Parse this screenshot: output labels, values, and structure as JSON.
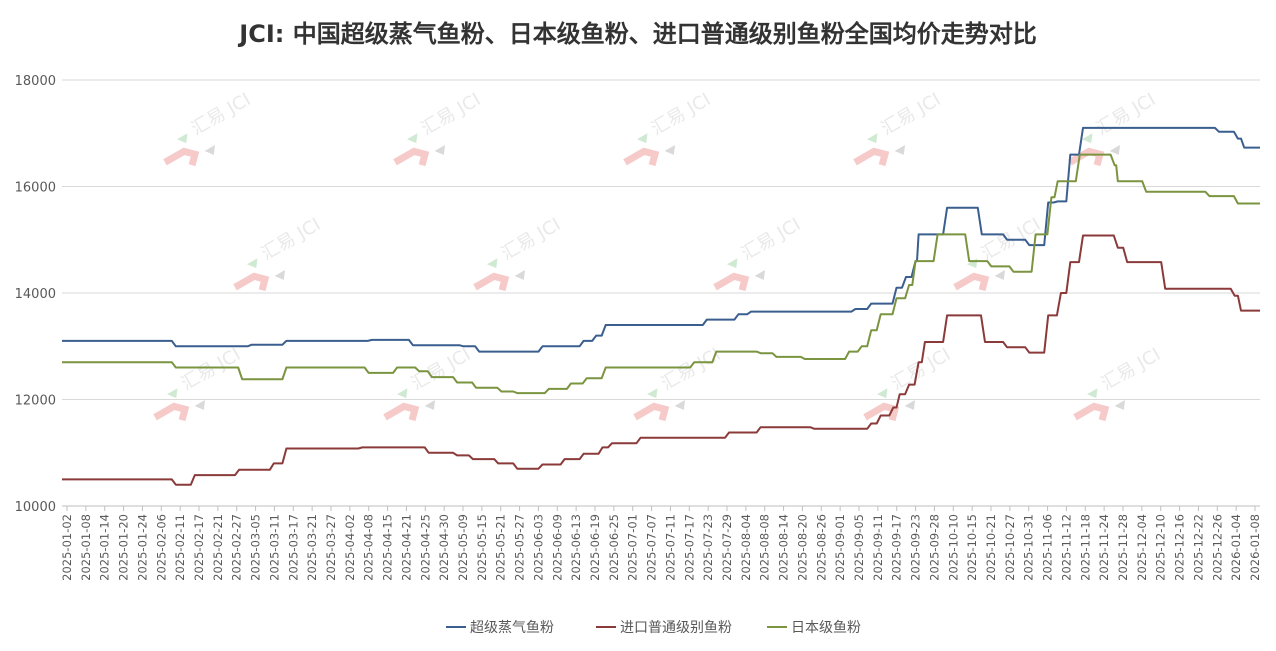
{
  "chart_data": {
    "type": "line",
    "title": "JCI: 中国超级蒸气鱼粉、日本级鱼粉、进口普通级别鱼粉全国均价走势对比",
    "xlabel": "",
    "ylabel": "",
    "ylim": [
      10000,
      18000
    ],
    "yticks": [
      10000,
      12000,
      14000,
      16000,
      18000
    ],
    "xrange": [
      "2025-01-02",
      "2026-01-12"
    ],
    "xticks": [
      "2025-01-02",
      "2025-01-08",
      "2025-01-14",
      "2025-01-20",
      "2025-01-24",
      "2025-02-06",
      "2025-02-11",
      "2025-02-17",
      "2025-02-21",
      "2025-02-27",
      "2025-03-05",
      "2025-03-11",
      "2025-03-17",
      "2025-03-21",
      "2025-03-27",
      "2025-04-02",
      "2025-04-08",
      "2025-04-15",
      "2025-04-21",
      "2025-04-25",
      "2025-04-30",
      "2025-05-09",
      "2025-05-15",
      "2025-05-21",
      "2025-05-27",
      "2025-06-03",
      "2025-06-09",
      "2025-06-13",
      "2025-06-19",
      "2025-06-25",
      "2025-07-01",
      "2025-07-07",
      "2025-07-11",
      "2025-07-17",
      "2025-07-23",
      "2025-07-29",
      "2025-08-04",
      "2025-08-08",
      "2025-08-14",
      "2025-08-20",
      "2025-08-26",
      "2025-09-01",
      "2025-09-05",
      "2025-09-11",
      "2025-09-17",
      "2025-09-23",
      "2025-09-28",
      "2025-10-10",
      "2025-10-15",
      "2025-10-21",
      "2025-10-27",
      "2025-10-31",
      "2025-11-06",
      "2025-11-12",
      "2025-11-18",
      "2025-11-24",
      "2025-11-28",
      "2025-12-04",
      "2025-12-10",
      "2025-12-16",
      "2025-12-22",
      "2025-12-26",
      "2026-01-04",
      "2026-01-08"
    ],
    "grid": true,
    "legend_position": "bottom",
    "watermark": "汇易 JCI",
    "series": [
      {
        "name": "超级蒸气鱼粉",
        "color": "#3a5f8f",
        "steps": [
          [
            "2025-01-02",
            13100
          ],
          [
            "2025-02-07",
            13000
          ],
          [
            "2025-02-28",
            13000
          ],
          [
            "2025-03-03",
            13030
          ],
          [
            "2025-03-14",
            13100
          ],
          [
            "2025-04-10",
            13120
          ],
          [
            "2025-04-23",
            13020
          ],
          [
            "2025-05-09",
            13000
          ],
          [
            "2025-05-14",
            12900
          ],
          [
            "2025-06-03",
            13000
          ],
          [
            "2025-06-16",
            13100
          ],
          [
            "2025-06-20",
            13200
          ],
          [
            "2025-06-23",
            13400
          ],
          [
            "2025-07-25",
            13500
          ],
          [
            "2025-08-04",
            13600
          ],
          [
            "2025-08-08",
            13650
          ],
          [
            "2025-09-10",
            13700
          ],
          [
            "2025-09-15",
            13800
          ],
          [
            "2025-09-23",
            14100
          ],
          [
            "2025-09-26",
            14300
          ],
          [
            "2025-09-29",
            14600
          ],
          [
            "2025-09-30",
            15100
          ],
          [
            "2025-10-09",
            15600
          ],
          [
            "2025-10-20",
            15100
          ],
          [
            "2025-10-28",
            15000
          ],
          [
            "2025-11-04",
            14900
          ],
          [
            "2025-11-10",
            15700
          ],
          [
            "2025-11-13",
            15720
          ],
          [
            "2025-11-17",
            16600
          ],
          [
            "2025-11-21",
            17100
          ],
          [
            "2026-01-03",
            17030
          ],
          [
            "2026-01-09",
            16900
          ],
          [
            "2026-01-11",
            16730
          ],
          [
            "2026-01-16",
            16730
          ]
        ]
      },
      {
        "name": "进口普通级别鱼粉",
        "color": "#8b3a3a",
        "steps": [
          [
            "2025-01-02",
            10500
          ],
          [
            "2025-02-07",
            10400
          ],
          [
            "2025-02-13",
            10580
          ],
          [
            "2025-02-27",
            10680
          ],
          [
            "2025-03-10",
            10800
          ],
          [
            "2025-03-14",
            11080
          ],
          [
            "2025-04-07",
            11100
          ],
          [
            "2025-04-28",
            11000
          ],
          [
            "2025-05-07",
            10950
          ],
          [
            "2025-05-12",
            10880
          ],
          [
            "2025-05-20",
            10800
          ],
          [
            "2025-05-26",
            10700
          ],
          [
            "2025-06-03",
            10780
          ],
          [
            "2025-06-10",
            10880
          ],
          [
            "2025-06-16",
            10980
          ],
          [
            "2025-06-22",
            11100
          ],
          [
            "2025-06-25",
            11180
          ],
          [
            "2025-07-04",
            11280
          ],
          [
            "2025-08-01",
            11380
          ],
          [
            "2025-08-11",
            11480
          ],
          [
            "2025-08-28",
            11450
          ],
          [
            "2025-09-15",
            11550
          ],
          [
            "2025-09-18",
            11700
          ],
          [
            "2025-09-22",
            11850
          ],
          [
            "2025-09-24",
            12100
          ],
          [
            "2025-09-27",
            12280
          ],
          [
            "2025-09-30",
            12700
          ],
          [
            "2025-10-02",
            13080
          ],
          [
            "2025-10-09",
            13580
          ],
          [
            "2025-10-21",
            13080
          ],
          [
            "2025-10-28",
            12980
          ],
          [
            "2025-11-04",
            12880
          ],
          [
            "2025-11-10",
            13580
          ],
          [
            "2025-11-14",
            14000
          ],
          [
            "2025-11-17",
            14580
          ],
          [
            "2025-11-21",
            15080
          ],
          [
            "2025-12-02",
            14850
          ],
          [
            "2025-12-05",
            14580
          ],
          [
            "2025-12-17",
            14080
          ],
          [
            "2026-01-08",
            13950
          ],
          [
            "2026-01-10",
            13670
          ],
          [
            "2026-01-16",
            13670
          ]
        ]
      },
      {
        "name": "日本级鱼粉",
        "color": "#7a9440",
        "steps": [
          [
            "2025-01-02",
            12700
          ],
          [
            "2025-02-07",
            12600
          ],
          [
            "2025-02-28",
            12380
          ],
          [
            "2025-03-14",
            12600
          ],
          [
            "2025-04-09",
            12500
          ],
          [
            "2025-04-18",
            12600
          ],
          [
            "2025-04-25",
            12530
          ],
          [
            "2025-04-29",
            12420
          ],
          [
            "2025-05-07",
            12320
          ],
          [
            "2025-05-13",
            12220
          ],
          [
            "2025-05-21",
            12150
          ],
          [
            "2025-05-26",
            12120
          ],
          [
            "2025-06-05",
            12200
          ],
          [
            "2025-06-12",
            12300
          ],
          [
            "2025-06-17",
            12400
          ],
          [
            "2025-06-23",
            12600
          ],
          [
            "2025-07-21",
            12700
          ],
          [
            "2025-07-28",
            12900
          ],
          [
            "2025-08-11",
            12870
          ],
          [
            "2025-08-16",
            12800
          ],
          [
            "2025-08-25",
            12760
          ],
          [
            "2025-09-08",
            12900
          ],
          [
            "2025-09-12",
            13000
          ],
          [
            "2025-09-15",
            13300
          ],
          [
            "2025-09-18",
            13600
          ],
          [
            "2025-09-23",
            13900
          ],
          [
            "2025-09-27",
            14150
          ],
          [
            "2025-09-29",
            14600
          ],
          [
            "2025-10-06",
            15100
          ],
          [
            "2025-10-16",
            14600
          ],
          [
            "2025-10-23",
            14500
          ],
          [
            "2025-10-30",
            14400
          ],
          [
            "2025-11-06",
            15100
          ],
          [
            "2025-11-11",
            15800
          ],
          [
            "2025-11-13",
            16100
          ],
          [
            "2025-11-20",
            16600
          ],
          [
            "2025-12-01",
            16400
          ],
          [
            "2025-12-02",
            16100
          ],
          [
            "2025-12-11",
            15900
          ],
          [
            "2025-12-31",
            15820
          ],
          [
            "2026-01-09",
            15680
          ],
          [
            "2026-01-16",
            15680
          ]
        ]
      }
    ]
  }
}
